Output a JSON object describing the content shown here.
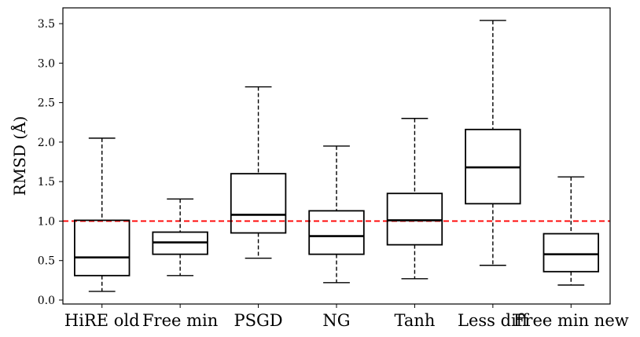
{
  "chart_data": {
    "type": "box",
    "title": "",
    "xlabel": "",
    "ylabel": "RMSD (Å)",
    "ylim": [
      -0.05,
      3.7
    ],
    "yticks": [
      0.0,
      0.5,
      1.0,
      1.5,
      2.0,
      2.5,
      3.0,
      3.5
    ],
    "ytick_labels": [
      "0.0",
      "0.5",
      "1.0",
      "1.5",
      "2.0",
      "2.5",
      "3.0",
      "3.5"
    ],
    "categories": [
      "HiRE old",
      "Free min",
      "PSGD",
      "NG",
      "Tanh",
      "Less diff",
      "Free min new"
    ],
    "boxes": [
      {
        "min": 0.11,
        "q1": 0.31,
        "median": 0.54,
        "q3": 1.01,
        "max": 2.05
      },
      {
        "min": 0.31,
        "q1": 0.58,
        "median": 0.73,
        "q3": 0.86,
        "max": 1.28
      },
      {
        "min": 0.53,
        "q1": 0.85,
        "median": 1.08,
        "q3": 1.6,
        "max": 2.7
      },
      {
        "min": 0.22,
        "q1": 0.58,
        "median": 0.81,
        "q3": 1.13,
        "max": 1.95
      },
      {
        "min": 0.27,
        "q1": 0.7,
        "median": 1.01,
        "q3": 1.35,
        "max": 2.3
      },
      {
        "min": 0.44,
        "q1": 1.22,
        "median": 1.68,
        "q3": 2.16,
        "max": 3.54
      },
      {
        "min": 0.19,
        "q1": 0.36,
        "median": 0.58,
        "q3": 0.84,
        "max": 1.56
      }
    ],
    "reference_line": {
      "y": 1.0,
      "color": "#ff0000",
      "style": "dashed"
    },
    "grid": false,
    "colors": {
      "box": "#000000",
      "reference": "#ff0000"
    }
  }
}
